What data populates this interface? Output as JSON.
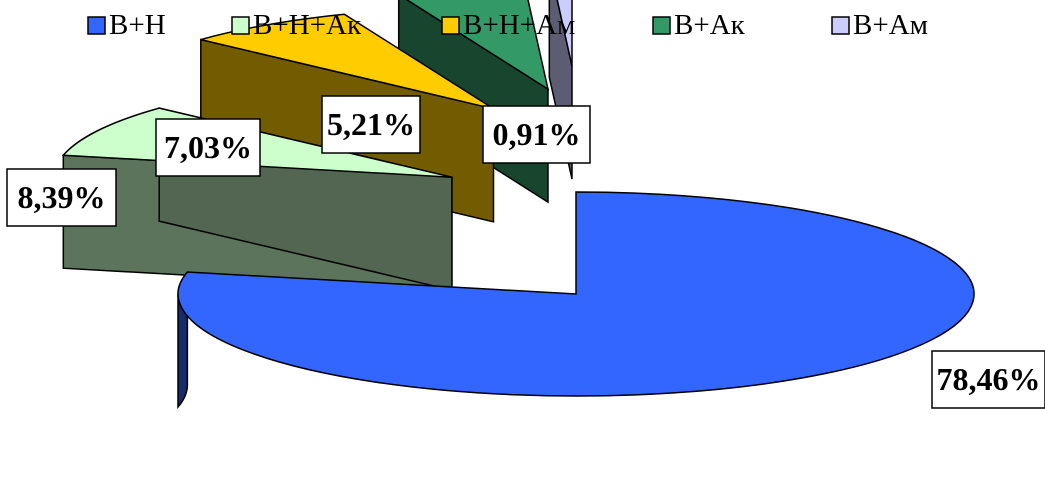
{
  "chart_data": {
    "type": "pie",
    "title": "",
    "legend_position": "top",
    "series": [
      {
        "name": "В+Н",
        "value": 78.46,
        "label": "78,46%",
        "color": "#3366FF"
      },
      {
        "name": "В+Н+Ак",
        "value": 8.39,
        "label": "8,39%",
        "color": "#CCFFCC"
      },
      {
        "name": "В+Н+Ам",
        "value": 7.03,
        "label": "7,03%",
        "color": "#FFCC00"
      },
      {
        "name": "В+Ак",
        "value": 5.21,
        "label": "5,21%",
        "color": "#339966"
      },
      {
        "name": "В+Ам",
        "value": 0.91,
        "label": "0,91%",
        "color": "#CCCCFF"
      }
    ]
  }
}
